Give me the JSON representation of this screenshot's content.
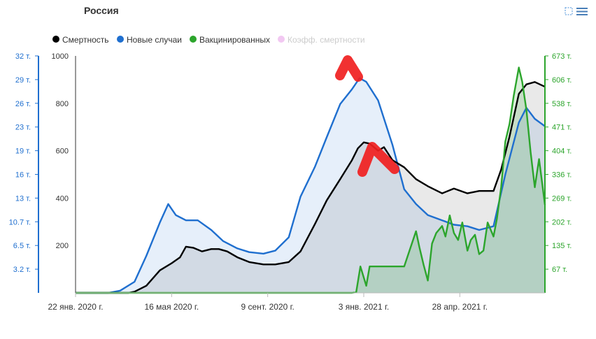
{
  "chart_data": {
    "type": "line",
    "title": "Россия",
    "legend_position": "top-left",
    "grid": false,
    "legend": [
      {
        "name": "Смертность",
        "color": "#000000",
        "enabled": true
      },
      {
        "name": "Новые случаи",
        "color": "#1f6fcf",
        "enabled": true
      },
      {
        "name": "Вакцинированных",
        "color": "#2ca52c",
        "enabled": true
      },
      {
        "name": "Коэфф. смертности",
        "color": "#f2c8f2",
        "enabled": false
      }
    ],
    "x_ticks": [
      "22 янв. 2020 г.",
      "16 мая 2020 г.",
      "9 сент. 2020 г.",
      "3 янв. 2021 г.",
      "28 апр. 2021 г."
    ],
    "x_range": [
      "2020-01-22",
      "2021-08-01"
    ],
    "y_axis_cases": {
      "ticks": [
        "3.2 т.",
        "6.5 т.",
        "10.7 т.",
        "13 т.",
        "16 т.",
        "19 т.",
        "23 т.",
        "26 т.",
        "29 т.",
        "32 т."
      ],
      "range": [
        0,
        32
      ],
      "unit": "т."
    },
    "y_axis_deaths": {
      "ticks": [
        "200",
        "400",
        "600",
        "800",
        "1000"
      ],
      "range": [
        0,
        1000
      ]
    },
    "y_axis_vaccinated": {
      "ticks": [
        "67 т.",
        "135 т.",
        "202 т.",
        "269 т.",
        "336 т.",
        "404 т.",
        "471 т.",
        "538 т.",
        "606 т.",
        "673 т."
      ],
      "range": [
        0,
        673
      ],
      "unit": "т."
    },
    "series": [
      {
        "name": "Смертность",
        "axis": "deaths",
        "color": "#000000",
        "x": [
          "2020-01-22",
          "2020-03-25",
          "2020-04-01",
          "2020-04-15",
          "2020-05-01",
          "2020-05-15",
          "2020-05-25",
          "2020-06-01",
          "2020-06-10",
          "2020-06-20",
          "2020-07-01",
          "2020-07-10",
          "2020-07-20",
          "2020-08-01",
          "2020-08-15",
          "2020-09-01",
          "2020-09-15",
          "2020-10-01",
          "2020-10-15",
          "2020-11-01",
          "2020-11-15",
          "2020-12-01",
          "2020-12-15",
          "2020-12-22",
          "2020-12-29",
          "2021-01-05",
          "2021-01-15",
          "2021-01-22",
          "2021-02-01",
          "2021-02-15",
          "2021-03-01",
          "2021-03-15",
          "2021-04-01",
          "2021-04-15",
          "2021-05-01",
          "2021-05-15",
          "2021-06-01",
          "2021-06-10",
          "2021-06-20",
          "2021-07-01",
          "2021-07-10",
          "2021-07-20",
          "2021-08-01"
        ],
        "values": [
          0,
          0,
          5,
          30,
          95,
          125,
          150,
          195,
          190,
          175,
          185,
          185,
          175,
          150,
          130,
          120,
          120,
          130,
          175,
          290,
          390,
          480,
          560,
          610,
          635,
          630,
          600,
          615,
          560,
          530,
          480,
          450,
          420,
          440,
          420,
          430,
          430,
          520,
          660,
          840,
          880,
          890,
          870
        ]
      },
      {
        "name": "Новые случаи",
        "axis": "cases",
        "color": "#1f6fcf",
        "x": [
          "2020-01-22",
          "2020-03-01",
          "2020-03-15",
          "2020-04-01",
          "2020-04-15",
          "2020-05-01",
          "2020-05-11",
          "2020-05-20",
          "2020-06-01",
          "2020-06-15",
          "2020-07-01",
          "2020-07-15",
          "2020-08-01",
          "2020-08-15",
          "2020-09-01",
          "2020-09-15",
          "2020-10-01",
          "2020-10-15",
          "2020-11-01",
          "2020-11-15",
          "2020-12-01",
          "2020-12-15",
          "2020-12-24",
          "2021-01-01",
          "2021-01-15",
          "2021-02-01",
          "2021-02-15",
          "2021-03-01",
          "2021-03-15",
          "2021-04-01",
          "2021-04-15",
          "2021-05-01",
          "2021-05-15",
          "2021-06-01",
          "2021-06-15",
          "2021-07-01",
          "2021-07-10",
          "2021-07-20",
          "2021-08-01"
        ],
        "values": [
          0,
          0,
          0.3,
          1.5,
          5,
          9.5,
          12,
          10.5,
          9.8,
          9.8,
          8.5,
          7.0,
          6.0,
          5.5,
          5.3,
          5.7,
          7.5,
          13,
          17,
          21,
          25.5,
          27.5,
          29,
          28.5,
          26,
          20,
          14,
          12,
          10.5,
          9.8,
          9.2,
          9.0,
          8.5,
          9.0,
          16,
          23,
          25,
          23.5,
          22.5
        ]
      },
      {
        "name": "Вакцинированных",
        "axis": "vaccinated",
        "color": "#2ca52c",
        "x": [
          "2020-01-22",
          "2020-12-15",
          "2020-12-20",
          "2020-12-25",
          "2021-01-01",
          "2021-01-05",
          "2021-01-10",
          "2021-01-15",
          "2021-02-01",
          "2021-02-15",
          "2021-03-01",
          "2021-03-05",
          "2021-03-10",
          "2021-03-15",
          "2021-03-20",
          "2021-03-25",
          "2021-04-01",
          "2021-04-05",
          "2021-04-10",
          "2021-04-15",
          "2021-04-20",
          "2021-04-25",
          "2021-05-01",
          "2021-05-05",
          "2021-05-10",
          "2021-05-15",
          "2021-05-20",
          "2021-05-25",
          "2021-06-01",
          "2021-06-05",
          "2021-06-10",
          "2021-06-15",
          "2021-06-20",
          "2021-06-25",
          "2021-07-01",
          "2021-07-05",
          "2021-07-10",
          "2021-07-15",
          "2021-07-20",
          "2021-07-25",
          "2021-08-01"
        ],
        "values": [
          0,
          0,
          2,
          75,
          20,
          75,
          75,
          75,
          75,
          75,
          175,
          130,
          80,
          35,
          140,
          170,
          190,
          160,
          220,
          170,
          150,
          200,
          120,
          150,
          165,
          110,
          120,
          200,
          160,
          210,
          300,
          430,
          480,
          560,
          640,
          600,
          520,
          400,
          300,
          380,
          250
        ]
      }
    ]
  },
  "icons": {
    "export": "fullscreen-icon",
    "menu": "hamburger-menu-icon"
  }
}
